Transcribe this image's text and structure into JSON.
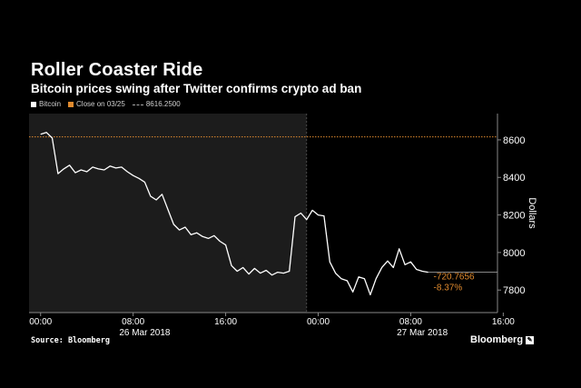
{
  "title": "Roller Coaster Ride",
  "subtitle": "Bitcoin prices swing after Twitter confirms crypto ad ban",
  "legend": {
    "series": "Bitcoin",
    "close_label": "Close on 03/25",
    "close_value": "8616.2500"
  },
  "source": "Source: Bloomberg",
  "brand": "Bloomberg",
  "colors": {
    "background": "#000000",
    "series": "#ffffff",
    "close_line": "#e08a2e",
    "shade": "#1c1c1c",
    "annotation": "#e08a2e"
  },
  "chart_data": {
    "type": "line",
    "ylabel": "Dollars",
    "ylim": [
      7680,
      8740
    ],
    "y_ticks": [
      7800,
      8000,
      8200,
      8400,
      8600
    ],
    "x_range_hours": [
      -1,
      39.5
    ],
    "x_ticks": [
      {
        "h": 0,
        "label": "00:00"
      },
      {
        "h": 8,
        "label": "08:00"
      },
      {
        "h": 16,
        "label": "16:00"
      },
      {
        "h": 24,
        "label": "00:00"
      },
      {
        "h": 32,
        "label": "08:00"
      },
      {
        "h": 40,
        "label": "16:00"
      }
    ],
    "date_labels": [
      {
        "h": 9,
        "label": "26 Mar 2018"
      },
      {
        "h": 33,
        "label": "27 Mar 2018"
      }
    ],
    "shaded_until_h": 23,
    "reference_value": 8616.25,
    "last_close_value": 7895,
    "annotation_change": "-720.7656",
    "annotation_pct": "-8.37%",
    "series": [
      {
        "name": "Bitcoin",
        "x": [
          0,
          0.5,
          1,
          1.5,
          2,
          2.5,
          3,
          3.5,
          4,
          4.5,
          5,
          5.5,
          6,
          6.5,
          7,
          7.5,
          8,
          8.5,
          9,
          9.5,
          10,
          10.5,
          11,
          11.5,
          12,
          12.5,
          13,
          13.5,
          14,
          14.5,
          15,
          15.5,
          16,
          16.5,
          17,
          17.5,
          18,
          18.5,
          19,
          19.5,
          20,
          20.5,
          21,
          21.5,
          22,
          22.5,
          23,
          23.5,
          24,
          24.5,
          25,
          25.5,
          26,
          26.5,
          27,
          27.5,
          28,
          28.5,
          29,
          29.5,
          30,
          30.5,
          31,
          31.5,
          32,
          32.5,
          33,
          33.5
        ],
        "values": [
          8630,
          8640,
          8610,
          8420,
          8445,
          8465,
          8425,
          8440,
          8430,
          8455,
          8445,
          8440,
          8460,
          8450,
          8455,
          8430,
          8410,
          8395,
          8375,
          8300,
          8280,
          8310,
          8230,
          8150,
          8120,
          8135,
          8095,
          8105,
          8085,
          8075,
          8090,
          8060,
          8040,
          7930,
          7900,
          7920,
          7885,
          7915,
          7890,
          7905,
          7880,
          7895,
          7890,
          7900,
          8190,
          8210,
          8175,
          8225,
          8200,
          8195,
          7950,
          7890,
          7860,
          7850,
          7790,
          7870,
          7860,
          7775,
          7860,
          7920,
          7955,
          7920,
          8020,
          7935,
          7950,
          7910,
          7900,
          7895
        ]
      }
    ]
  }
}
